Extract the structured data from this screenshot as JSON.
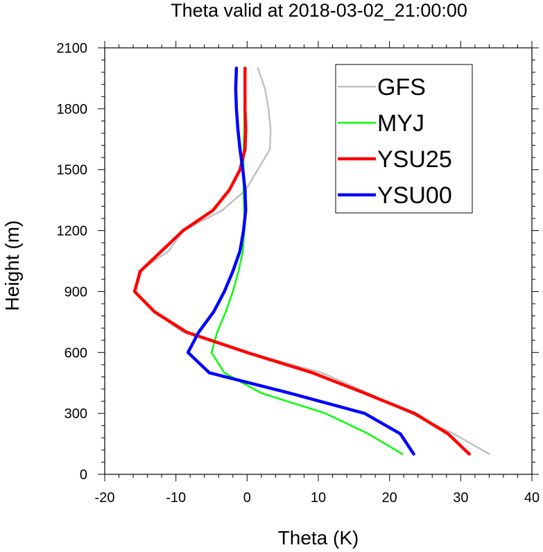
{
  "chart_data": {
    "type": "line",
    "title": "Theta valid at 2018-03-02_21:00:00",
    "xlabel": "Theta (K)",
    "ylabel": "Height (m)",
    "xlim": [
      -20,
      40
    ],
    "ylim": [
      0,
      2100
    ],
    "xticks": [
      "-20",
      "-10",
      "0",
      "10",
      "20",
      "30",
      "40"
    ],
    "yticks": [
      "0",
      "300",
      "600",
      "900",
      "1200",
      "1500",
      "1800",
      "2100"
    ],
    "legend_position": "top-right",
    "grid": false,
    "series": [
      {
        "name": "GFS",
        "color": "#c0c0c0",
        "points": [
          [
            34.0,
            100
          ],
          [
            29.0,
            200
          ],
          [
            23.0,
            300
          ],
          [
            17.0,
            400
          ],
          [
            10.5,
            500
          ],
          [
            0.0,
            600
          ],
          [
            -9.0,
            700
          ],
          [
            -13.0,
            800
          ],
          [
            -15.8,
            900
          ],
          [
            -15.2,
            1000
          ],
          [
            -11.0,
            1100
          ],
          [
            -9.0,
            1200
          ],
          [
            -3.5,
            1300
          ],
          [
            -0.2,
            1400
          ],
          [
            1.5,
            1500
          ],
          [
            3.2,
            1600
          ],
          [
            3.3,
            1700
          ],
          [
            3.0,
            1800
          ],
          [
            2.5,
            1900
          ],
          [
            1.5,
            2000
          ]
        ]
      },
      {
        "name": "MYJ",
        "color": "#00ff00",
        "points": [
          [
            21.8,
            100
          ],
          [
            17.0,
            200
          ],
          [
            11.0,
            300
          ],
          [
            2.0,
            400
          ],
          [
            -3.2,
            500
          ],
          [
            -5.0,
            600
          ],
          [
            -4.2,
            700
          ],
          [
            -3.0,
            800
          ],
          [
            -2.0,
            900
          ],
          [
            -1.2,
            1000
          ],
          [
            -0.6,
            1100
          ],
          [
            -0.4,
            1200
          ],
          [
            -0.4,
            1300
          ],
          [
            -0.5,
            1400
          ],
          [
            -0.5,
            1500
          ],
          [
            -0.5,
            1600
          ],
          [
            -0.4,
            1700
          ],
          [
            -0.4,
            1800
          ],
          [
            -0.3,
            1900
          ],
          [
            -0.2,
            2000
          ]
        ]
      },
      {
        "name": "YSU25",
        "color": "#ff0000",
        "points": [
          [
            31.2,
            100
          ],
          [
            28.2,
            200
          ],
          [
            23.5,
            300
          ],
          [
            16.5,
            400
          ],
          [
            9.2,
            500
          ],
          [
            0.0,
            600
          ],
          [
            -8.5,
            700
          ],
          [
            -13.0,
            800
          ],
          [
            -15.8,
            900
          ],
          [
            -15.0,
            1000
          ],
          [
            -12.0,
            1100
          ],
          [
            -9.0,
            1200
          ],
          [
            -4.8,
            1300
          ],
          [
            -2.5,
            1400
          ],
          [
            -1.0,
            1500
          ],
          [
            -0.3,
            1600
          ],
          [
            -0.2,
            1700
          ],
          [
            -0.3,
            1800
          ],
          [
            -0.3,
            1900
          ],
          [
            -0.3,
            2000
          ]
        ]
      },
      {
        "name": "YSU00",
        "color": "#0000ff",
        "points": [
          [
            23.4,
            100
          ],
          [
            21.5,
            200
          ],
          [
            16.5,
            300
          ],
          [
            6.0,
            400
          ],
          [
            -5.3,
            500
          ],
          [
            -8.3,
            600
          ],
          [
            -6.8,
            700
          ],
          [
            -4.7,
            800
          ],
          [
            -3.2,
            900
          ],
          [
            -2.0,
            1000
          ],
          [
            -1.0,
            1100
          ],
          [
            -0.5,
            1200
          ],
          [
            -0.2,
            1300
          ],
          [
            -0.3,
            1400
          ],
          [
            -0.6,
            1500
          ],
          [
            -1.0,
            1600
          ],
          [
            -1.3,
            1700
          ],
          [
            -1.5,
            1800
          ],
          [
            -1.6,
            1900
          ],
          [
            -1.5,
            2000
          ]
        ]
      }
    ]
  }
}
